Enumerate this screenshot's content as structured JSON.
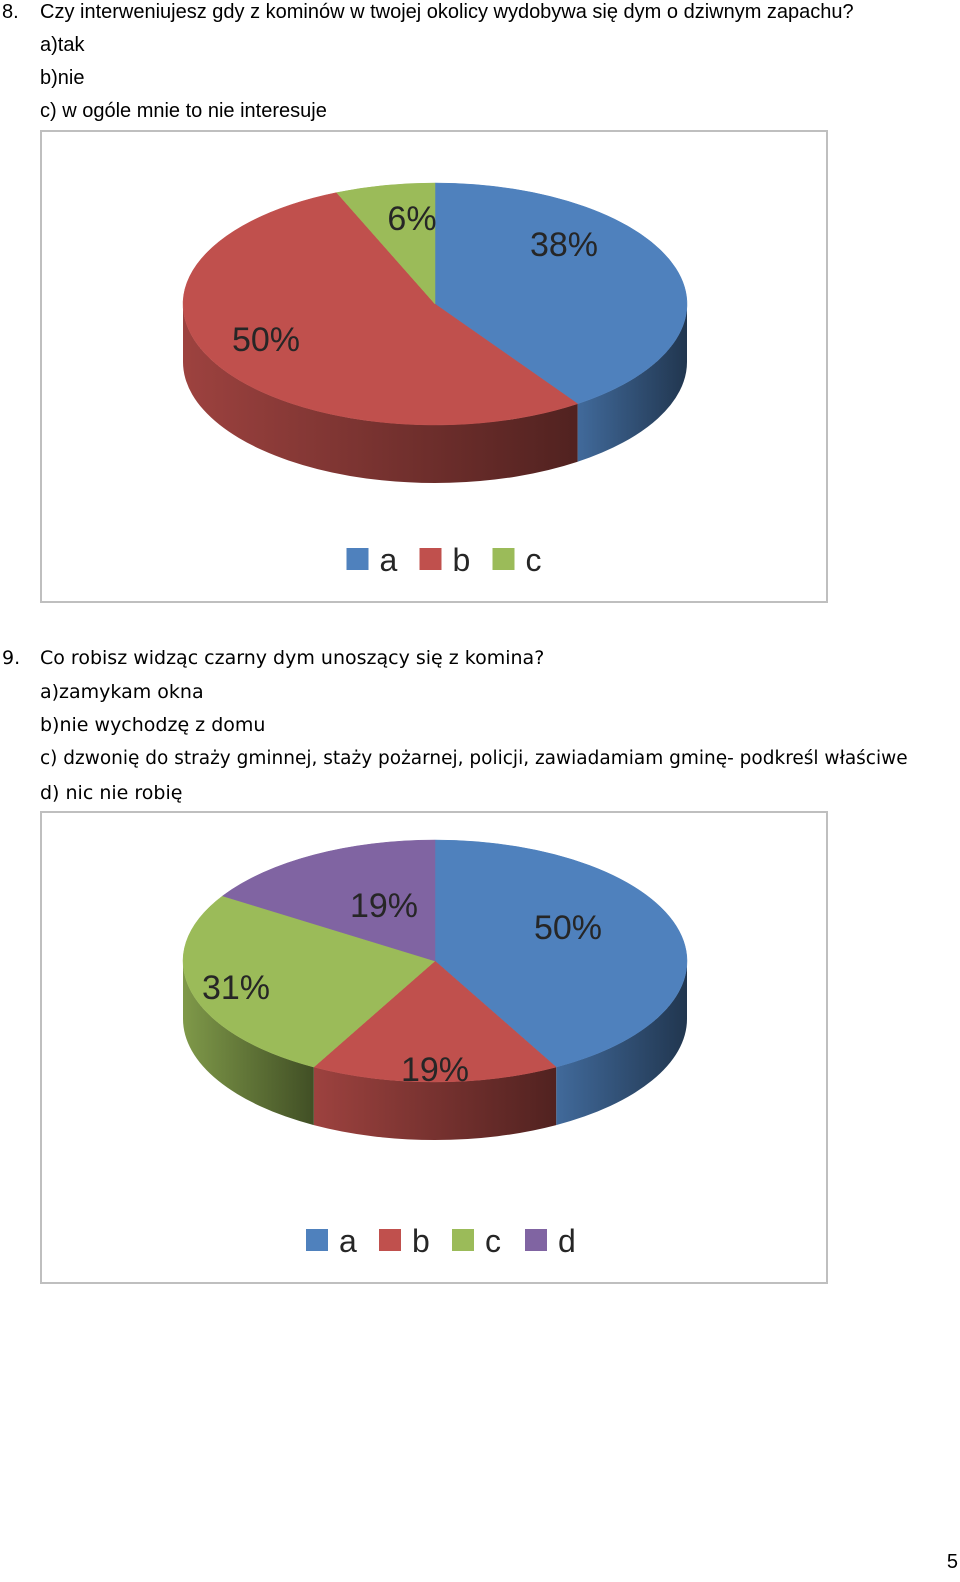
{
  "question8": {
    "number": "8.",
    "text": "Czy interweniujesz gdy z kominów w twojej okolicy wydobywa się dym o dziwnym zapachu?",
    "options": [
      "a)tak",
      "b)nie",
      "c) w ogóle mnie to nie interesuje"
    ]
  },
  "question9": {
    "number": "9.",
    "text": "Co robisz widząc czarny dym unoszący się z komina?",
    "options": [
      "a)zamykam okna",
      "b)nie wychodzę z domu",
      "c) dzwonię do straży gminnej, staży pożarnej, policji, zawiadamiam gminę- podkreśl właściwe",
      "d) nic nie robię"
    ]
  },
  "chart_data": [
    {
      "type": "pie",
      "title": "",
      "categories": [
        "a",
        "b",
        "c"
      ],
      "values": [
        38,
        50,
        6
      ],
      "labels": [
        "38%",
        "50%",
        "6%"
      ],
      "colors": [
        "#4f81bd",
        "#c0504d",
        "#9bbb59"
      ],
      "legend": "bottom"
    },
    {
      "type": "pie",
      "title": "",
      "categories": [
        "a",
        "b",
        "c",
        "d"
      ],
      "values": [
        50,
        19,
        31,
        19
      ],
      "labels": [
        "50%",
        "19%",
        "31%",
        "19%"
      ],
      "colors": [
        "#4f81bd",
        "#c0504d",
        "#9bbb59",
        "#8064a2"
      ],
      "legend": "bottom"
    }
  ],
  "page_number": "5"
}
